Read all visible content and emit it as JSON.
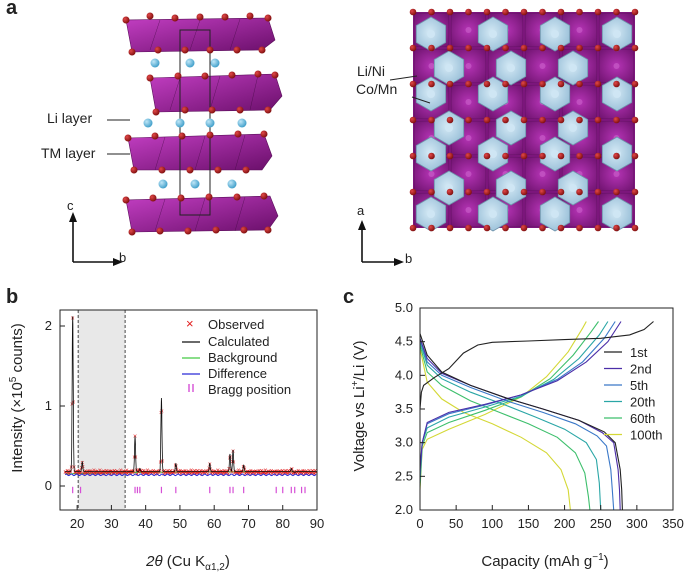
{
  "panel_a": {
    "letter": "a",
    "left": {
      "labels": {
        "li_layer": "Li layer",
        "tm_layer": "TM layer"
      },
      "axes": {
        "vertical": "c",
        "horizontal": "b"
      }
    },
    "right": {
      "labels": {
        "li_ni": "Li/Ni",
        "co_mn": "Co/Mn"
      },
      "axes": {
        "vertical": "a",
        "horizontal": "b"
      }
    },
    "colors": {
      "tm_octahedra": "#8e1f8e",
      "li_ions": "#5ab4d8",
      "oxygen": "#a01818",
      "li_ni_octahedra": "#a9cfe5"
    }
  },
  "panel_b": {
    "letter": "b",
    "ylabel_main": "Intensity (×10",
    "ylabel_exp": "5",
    "ylabel_tail": " counts)",
    "xlabel_theta": "2θ",
    "xlabel_main": " (Cu K",
    "xlabel_sub": "α1,2",
    "xlabel_tail": ")",
    "legend": [
      "Observed",
      "Calculated",
      "Background",
      "Difference",
      "Bragg position"
    ],
    "colors": {
      "observed": "#e21c1c",
      "calculated": "#111111",
      "background": "#45c945",
      "difference": "#2b2bd6",
      "bragg": "#d64fd6",
      "shade": "#e8e8e8"
    }
  },
  "panel_c": {
    "letter": "c",
    "ylabel_pre": "Voltage vs Li",
    "ylabel_sup": "+",
    "ylabel_post": "/Li (V)",
    "xlabel_main": "Capacity (mAh g",
    "xlabel_sup": "−1",
    "xlabel_tail": ")",
    "legend": [
      "1st",
      "2nd",
      "5th",
      "20th",
      "60th",
      "100th"
    ]
  },
  "chart_data": [
    {
      "type": "line",
      "title": "",
      "xlabel": "2θ (Cu Kα1,2)",
      "ylabel": "Intensity (×10^5 counts)",
      "xlim": [
        15,
        90
      ],
      "ylim": [
        -0.3,
        2.2
      ],
      "x_ticks": [
        20,
        30,
        40,
        50,
        60,
        70,
        80,
        90
      ],
      "y_ticks": [
        0,
        1,
        2
      ],
      "shaded_region": [
        20.3,
        34
      ],
      "peaks": [
        {
          "x": 18.7,
          "y": 2.12
        },
        {
          "x": 21.5,
          "y": 0.3
        },
        {
          "x": 36.9,
          "y": 0.62
        },
        {
          "x": 38.3,
          "y": 0.22
        },
        {
          "x": 44.6,
          "y": 1.1
        },
        {
          "x": 48.8,
          "y": 0.28
        },
        {
          "x": 58.7,
          "y": 0.28
        },
        {
          "x": 64.6,
          "y": 0.4
        },
        {
          "x": 65.5,
          "y": 0.45
        },
        {
          "x": 68.6,
          "y": 0.26
        },
        {
          "x": 78.1,
          "y": 0.18
        },
        {
          "x": 82.5,
          "y": 0.22
        },
        {
          "x": 83.5,
          "y": 0.17
        }
      ],
      "baseline": 0.18,
      "difference_offset": 0.14,
      "bragg_positions": [
        18.7,
        21.0,
        36.9,
        37.6,
        38.3,
        44.6,
        48.8,
        58.7,
        64.6,
        65.5,
        68.6,
        78.1,
        80.0,
        82.5,
        83.5,
        85.5,
        86.5
      ]
    },
    {
      "type": "line",
      "title": "",
      "xlabel": "Capacity (mAh g−1)",
      "ylabel": "Voltage vs Li+/Li (V)",
      "xlim": [
        0,
        350
      ],
      "ylim": [
        2.0,
        5.0
      ],
      "x_ticks": [
        0,
        50,
        100,
        150,
        200,
        250,
        300,
        350
      ],
      "y_ticks": [
        2.0,
        2.5,
        3.0,
        3.5,
        4.0,
        4.5,
        5.0
      ],
      "series": [
        {
          "name": "1st",
          "color": "#222222",
          "charge": [
            [
              0,
              3.5
            ],
            [
              2,
              3.75
            ],
            [
              5,
              3.85
            ],
            [
              20,
              3.97
            ],
            [
              40,
              4.1
            ],
            [
              60,
              4.33
            ],
            [
              80,
              4.45
            ],
            [
              100,
              4.49
            ],
            [
              150,
              4.51
            ],
            [
              200,
              4.53
            ],
            [
              250,
              4.55
            ],
            [
              290,
              4.6
            ],
            [
              310,
              4.68
            ],
            [
              323,
              4.8
            ]
          ],
          "discharge": [
            [
              0,
              4.62
            ],
            [
              10,
              4.3
            ],
            [
              30,
              4.05
            ],
            [
              70,
              3.85
            ],
            [
              120,
              3.66
            ],
            [
              170,
              3.5
            ],
            [
              220,
              3.33
            ],
            [
              255,
              3.16
            ],
            [
              270,
              3.0
            ],
            [
              277,
              2.6
            ],
            [
              279,
              2.3
            ],
            [
              280,
              2.0
            ]
          ]
        },
        {
          "name": "2nd",
          "color": "#4b2ea8",
          "charge": [
            [
              0,
              2.6
            ],
            [
              3,
              3.0
            ],
            [
              10,
              3.3
            ],
            [
              40,
              3.45
            ],
            [
              90,
              3.57
            ],
            [
              140,
              3.71
            ],
            [
              190,
              3.92
            ],
            [
              230,
              4.2
            ],
            [
              260,
              4.5
            ],
            [
              278,
              4.8
            ]
          ],
          "discharge": [
            [
              0,
              4.55
            ],
            [
              10,
              4.25
            ],
            [
              30,
              4.03
            ],
            [
              70,
              3.85
            ],
            [
              120,
              3.66
            ],
            [
              170,
              3.5
            ],
            [
              220,
              3.33
            ],
            [
              252,
              3.15
            ],
            [
              268,
              3.0
            ],
            [
              274,
              2.6
            ],
            [
              276,
              2.3
            ],
            [
              277,
              2.0
            ]
          ]
        },
        {
          "name": "5th",
          "color": "#3a78c8",
          "charge": [
            [
              0,
              2.5
            ],
            [
              3,
              3.0
            ],
            [
              10,
              3.28
            ],
            [
              40,
              3.43
            ],
            [
              90,
              3.56
            ],
            [
              140,
              3.71
            ],
            [
              190,
              3.94
            ],
            [
              225,
              4.2
            ],
            [
              255,
              4.55
            ],
            [
              270,
              4.8
            ]
          ],
          "discharge": [
            [
              0,
              4.55
            ],
            [
              10,
              4.2
            ],
            [
              30,
              4.0
            ],
            [
              70,
              3.82
            ],
            [
              120,
              3.62
            ],
            [
              170,
              3.45
            ],
            [
              215,
              3.28
            ],
            [
              245,
              3.1
            ],
            [
              258,
              2.95
            ],
            [
              264,
              2.6
            ],
            [
              266,
              2.3
            ],
            [
              268,
              2.0
            ]
          ]
        },
        {
          "name": "20th",
          "color": "#2aa6a6",
          "charge": [
            [
              0,
              2.4
            ],
            [
              3,
              3.0
            ],
            [
              10,
              3.22
            ],
            [
              40,
              3.38
            ],
            [
              90,
              3.53
            ],
            [
              140,
              3.69
            ],
            [
              185,
              3.94
            ],
            [
              220,
              4.25
            ],
            [
              248,
              4.6
            ],
            [
              260,
              4.8
            ]
          ],
          "discharge": [
            [
              0,
              4.5
            ],
            [
              10,
              4.15
            ],
            [
              30,
              3.95
            ],
            [
              70,
              3.75
            ],
            [
              120,
              3.55
            ],
            [
              160,
              3.38
            ],
            [
              200,
              3.2
            ],
            [
              230,
              3.0
            ],
            [
              244,
              2.75
            ],
            [
              248,
              2.4
            ],
            [
              250,
              2.0
            ]
          ]
        },
        {
          "name": "60th",
          "color": "#3dbf6c",
          "charge": [
            [
              0,
              2.35
            ],
            [
              3,
              2.95
            ],
            [
              10,
              3.15
            ],
            [
              40,
              3.3
            ],
            [
              90,
              3.48
            ],
            [
              140,
              3.68
            ],
            [
              180,
              3.95
            ],
            [
              212,
              4.3
            ],
            [
              237,
              4.65
            ],
            [
              247,
              4.8
            ]
          ],
          "discharge": [
            [
              0,
              4.45
            ],
            [
              10,
              4.05
            ],
            [
              30,
              3.85
            ],
            [
              70,
              3.62
            ],
            [
              110,
              3.45
            ],
            [
              150,
              3.28
            ],
            [
              190,
              3.08
            ],
            [
              215,
              2.85
            ],
            [
              228,
              2.55
            ],
            [
              233,
              2.2
            ],
            [
              235,
              2.0
            ]
          ]
        },
        {
          "name": "100th",
          "color": "#d4d836",
          "charge": [
            [
              0,
              2.3
            ],
            [
              3,
              2.9
            ],
            [
              10,
              3.05
            ],
            [
              40,
              3.2
            ],
            [
              90,
              3.42
            ],
            [
              140,
              3.68
            ],
            [
              175,
              3.98
            ],
            [
              205,
              4.35
            ],
            [
              225,
              4.7
            ],
            [
              230,
              4.8
            ]
          ],
          "discharge": [
            [
              0,
              4.4
            ],
            [
              10,
              3.9
            ],
            [
              30,
              3.65
            ],
            [
              60,
              3.45
            ],
            [
              100,
              3.28
            ],
            [
              140,
              3.08
            ],
            [
              175,
              2.85
            ],
            [
              195,
              2.6
            ],
            [
              205,
              2.3
            ],
            [
              208,
              2.0
            ]
          ]
        }
      ]
    }
  ]
}
